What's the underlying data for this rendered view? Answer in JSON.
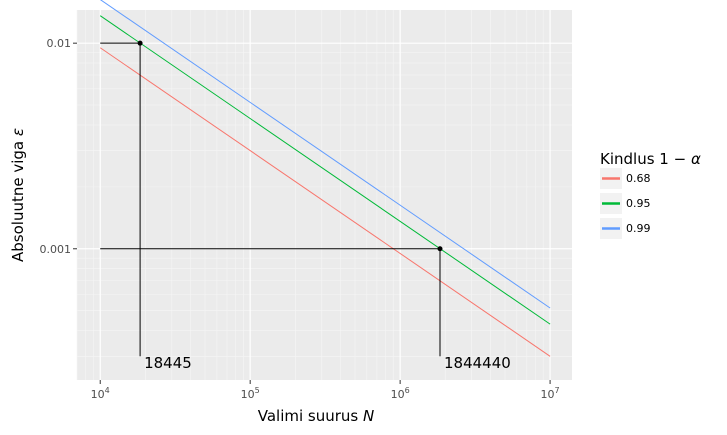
{
  "chart_data": {
    "type": "line",
    "title": "",
    "xlabel": "Valimi suurus N",
    "xlabel_parts": {
      "text": "Valimi suurus ",
      "var": "N"
    },
    "ylabel": "Absoluutne viga ε",
    "ylabel_parts": {
      "text": "Absoluutne viga ",
      "var": "ε"
    },
    "x_scale": "log10",
    "y_scale": "log10",
    "xlim": [
      7000,
      14000000
    ],
    "ylim": [
      0.00023,
      0.0145
    ],
    "x_ticks": [
      {
        "value": 10000,
        "base": "10",
        "exp": "4"
      },
      {
        "value": 100000,
        "base": "10",
        "exp": "5"
      },
      {
        "value": 1000000,
        "base": "10",
        "exp": "6"
      },
      {
        "value": 10000000,
        "base": "10",
        "exp": "7"
      }
    ],
    "y_ticks": [
      {
        "value": 0.001,
        "label": "0.001"
      },
      {
        "value": 0.01,
        "label": "0.01"
      }
    ],
    "grid": true,
    "legend": {
      "title": "Kindlus 1 − α",
      "title_parts": {
        "text": "Kindlus 1 − ",
        "var": "α"
      },
      "position": "right"
    },
    "series": [
      {
        "name": "0.68",
        "color": "#F8766D",
        "x": [
          10000,
          10000000
        ],
        "y": [
          0.0095,
          0.0003
        ]
      },
      {
        "name": "0.95",
        "color": "#00BA38",
        "x": [
          10000,
          10000000
        ],
        "y": [
          0.0136,
          0.00043
        ]
      },
      {
        "name": "0.99",
        "color": "#619CFF",
        "x": [
          10000,
          10000000
        ],
        "y": [
          0.0163,
          0.000515
        ]
      }
    ],
    "annotations": [
      {
        "label": "18445",
        "x": 18445,
        "y": 0.01
      },
      {
        "label": "1844440",
        "x": 1844440,
        "y": 0.001
      }
    ]
  }
}
